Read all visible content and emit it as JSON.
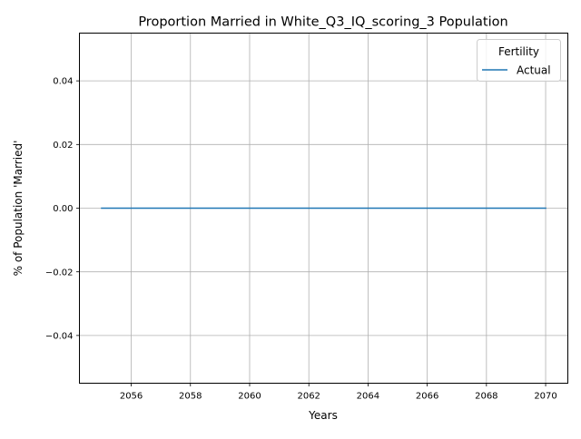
{
  "chart_data": {
    "type": "line",
    "title": "Proportion Married in White_Q3_IQ_scoring_3 Population",
    "xlabel": "Years",
    "ylabel": "% of Population 'Married'",
    "xlim": [
      2054.25,
      2070.75
    ],
    "ylim": [
      -0.055,
      0.055
    ],
    "x_ticks": [
      2056,
      2058,
      2060,
      2062,
      2064,
      2066,
      2068,
      2070
    ],
    "x_tick_labels": [
      "2056",
      "2058",
      "2060",
      "2062",
      "2064",
      "2066",
      "2068",
      "2070"
    ],
    "y_ticks": [
      -0.04,
      -0.02,
      0.0,
      0.02,
      0.04
    ],
    "y_tick_labels": [
      "−0.04",
      "−0.02",
      "0.00",
      "0.02",
      "0.04"
    ],
    "grid": true,
    "legend": {
      "title": "Fertility",
      "placement": "top-right"
    },
    "series": [
      {
        "name": "Actual",
        "color": "#1f77b4",
        "x": [
          2055,
          2056,
          2057,
          2058,
          2059,
          2060,
          2061,
          2062,
          2063,
          2064,
          2065,
          2066,
          2067,
          2068,
          2069,
          2070
        ],
        "y": [
          0,
          0,
          0,
          0,
          0,
          0,
          0,
          0,
          0,
          0,
          0,
          0,
          0,
          0,
          0,
          0
        ]
      }
    ]
  }
}
